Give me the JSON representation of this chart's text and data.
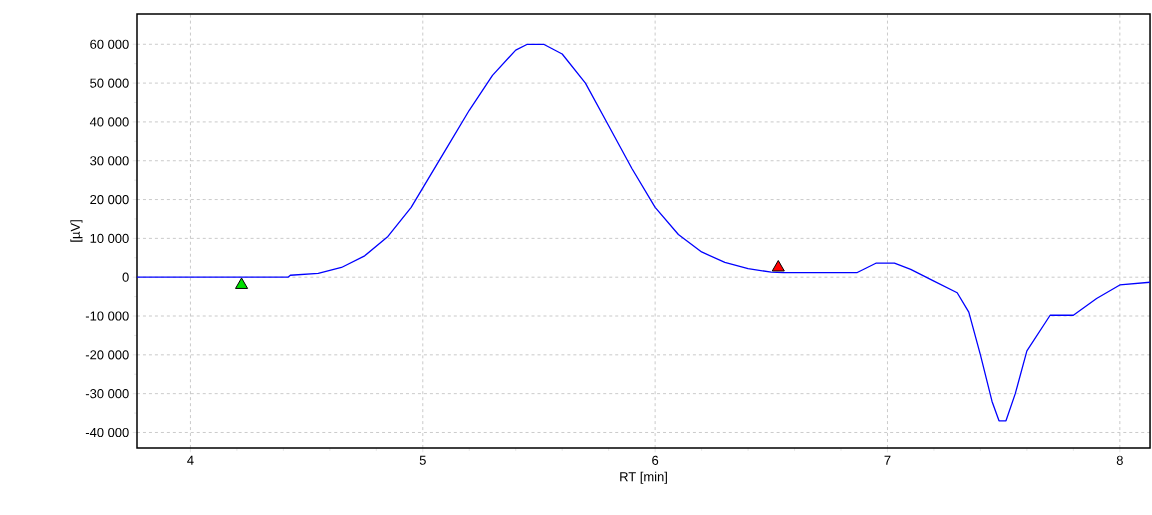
{
  "chart_data": {
    "type": "line",
    "xlabel": "RT [min]",
    "ylabel": "[µV]",
    "xlim": [
      3.77,
      8.13
    ],
    "ylim": [
      -44000,
      67800
    ],
    "xticks": [
      4,
      5,
      6,
      7,
      8
    ],
    "yticks": [
      {
        "value": -40000,
        "label": "-40 000"
      },
      {
        "value": -30000,
        "label": "-30 000"
      },
      {
        "value": -20000,
        "label": "-20 000"
      },
      {
        "value": -10000,
        "label": "-10 000"
      },
      {
        "value": 0,
        "label": "0"
      },
      {
        "value": 10000,
        "label": "10 000"
      },
      {
        "value": 20000,
        "label": "20 000"
      },
      {
        "value": 30000,
        "label": "30 000"
      },
      {
        "value": 40000,
        "label": "40 000"
      },
      {
        "value": 50000,
        "label": "50 000"
      },
      {
        "value": 60000,
        "label": "60 000"
      }
    ],
    "grid": true,
    "series": [
      {
        "color": "#0000ff",
        "marker": "none",
        "x": [
          3.77,
          4.42,
          4.43,
          4.55,
          4.65,
          4.75,
          4.85,
          4.95,
          5.0,
          5.1,
          5.2,
          5.3,
          5.4,
          5.45,
          5.52,
          5.6,
          5.7,
          5.8,
          5.9,
          6.0,
          6.1,
          6.2,
          6.3,
          6.4,
          6.5,
          6.55,
          6.87,
          6.95,
          7.03,
          7.1,
          7.2,
          7.3,
          7.35,
          7.4,
          7.45,
          7.48,
          7.51,
          7.55,
          7.6,
          7.7,
          7.8,
          7.9,
          8.0,
          8.13
        ],
        "values": [
          0,
          0,
          500,
          1000,
          2500,
          5500,
          10500,
          18000,
          23000,
          33000,
          43000,
          52000,
          58500,
          60000,
          60000,
          57500,
          50000,
          39000,
          28000,
          18000,
          11000,
          6500,
          3800,
          2200,
          1300,
          1200,
          1200,
          3600,
          3600,
          2000,
          -1000,
          -4000,
          -9000,
          -20000,
          -32000,
          -37000,
          -37000,
          -30000,
          -19000,
          -9800,
          -9800,
          -5500,
          -2000,
          -1300
        ]
      },
      {
        "type": "scatter",
        "color": "#00e000",
        "marker": "triangle",
        "x": [
          4.22
        ],
        "values": [
          -2000
        ]
      },
      {
        "type": "scatter",
        "color": "#ff0000",
        "marker": "triangle",
        "x": [
          6.53
        ],
        "values": [
          2500
        ]
      }
    ]
  }
}
